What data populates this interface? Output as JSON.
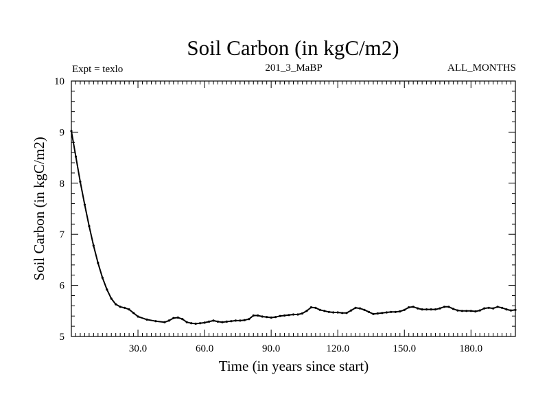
{
  "chart_data": {
    "type": "line",
    "title": "Soil Carbon (in kgC/m2)",
    "experiment_label": "Expt = texlo",
    "run_label": "201_3_MaBP",
    "period_label": "ALL_MONTHS",
    "xlabel": "Time (in years since start)",
    "ylabel": "Soil Carbon (in kgC/m2)",
    "xlim": [
      0,
      200
    ],
    "ylim": [
      5,
      10
    ],
    "x_ticks": [
      30,
      60,
      90,
      120,
      150,
      180
    ],
    "x_tick_labels": [
      "30.0",
      "60.0",
      "90.0",
      "120.0",
      "150.0",
      "180.0"
    ],
    "y_ticks": [
      5,
      6,
      7,
      8,
      9,
      10
    ],
    "y_tick_labels": [
      "5",
      "6",
      "7",
      "8",
      "9",
      "10"
    ],
    "grid": false,
    "series": [
      {
        "name": "Soil Carbon",
        "color": "#000000",
        "x": [
          0,
          2,
          4,
          6,
          8,
          10,
          12,
          14,
          16,
          18,
          20,
          22,
          24,
          26,
          28,
          30,
          34,
          38,
          42,
          44,
          46,
          48,
          50,
          52,
          54,
          56,
          58,
          60,
          62,
          64,
          66,
          68,
          70,
          72,
          74,
          76,
          78,
          80,
          82,
          84,
          86,
          88,
          90,
          92,
          94,
          96,
          98,
          100,
          102,
          104,
          106,
          108,
          110,
          112,
          114,
          116,
          118,
          120,
          122,
          124,
          126,
          128,
          130,
          132,
          134,
          136,
          138,
          140,
          142,
          144,
          146,
          148,
          150,
          152,
          154,
          156,
          158,
          160,
          162,
          164,
          166,
          168,
          170,
          172,
          174,
          176,
          178,
          180,
          182,
          184,
          186,
          188,
          190,
          192,
          194,
          196,
          198,
          200
        ],
        "values": [
          9.02,
          8.52,
          8.03,
          7.58,
          7.16,
          6.78,
          6.44,
          6.15,
          5.92,
          5.74,
          5.63,
          5.58,
          5.56,
          5.53,
          5.46,
          5.39,
          5.33,
          5.3,
          5.28,
          5.31,
          5.36,
          5.37,
          5.34,
          5.28,
          5.26,
          5.25,
          5.26,
          5.27,
          5.29,
          5.31,
          5.29,
          5.28,
          5.29,
          5.3,
          5.31,
          5.31,
          5.32,
          5.34,
          5.41,
          5.41,
          5.39,
          5.38,
          5.37,
          5.38,
          5.4,
          5.41,
          5.42,
          5.43,
          5.43,
          5.45,
          5.5,
          5.57,
          5.56,
          5.52,
          5.5,
          5.48,
          5.47,
          5.47,
          5.46,
          5.46,
          5.51,
          5.56,
          5.55,
          5.52,
          5.48,
          5.44,
          5.45,
          5.46,
          5.47,
          5.48,
          5.48,
          5.49,
          5.52,
          5.57,
          5.58,
          5.55,
          5.53,
          5.53,
          5.53,
          5.53,
          5.55,
          5.58,
          5.58,
          5.54,
          5.51,
          5.5,
          5.5,
          5.5,
          5.49,
          5.51,
          5.55,
          5.56,
          5.55,
          5.58,
          5.56,
          5.53,
          5.51,
          5.52
        ]
      }
    ]
  }
}
